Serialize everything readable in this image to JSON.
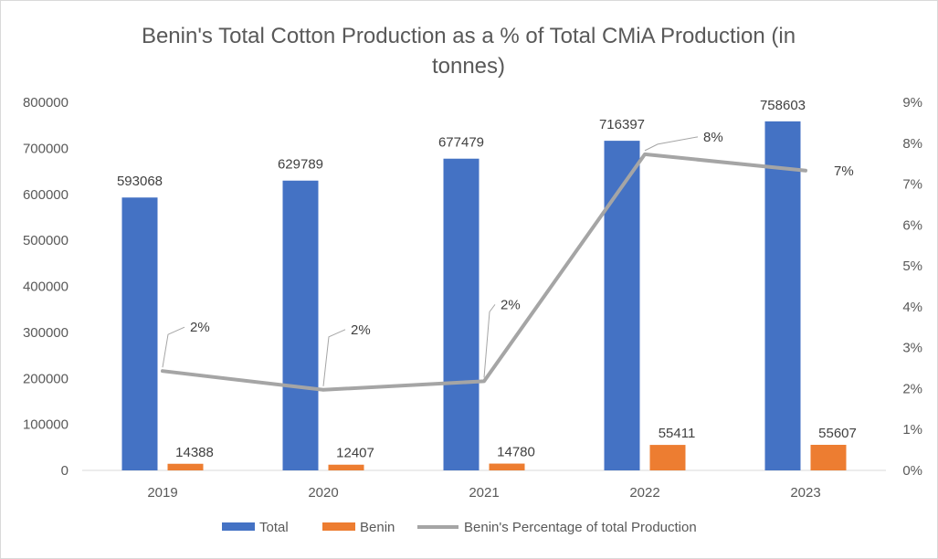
{
  "chart_data": {
    "type": "bar",
    "title": "Benin's Total Cotton Production as a % of Total CMiA Production (in tonnes)",
    "title_lines": [
      "Benin's Total Cotton Production as a % of Total CMiA Production (in",
      "tonnes)"
    ],
    "categories": [
      "2019",
      "2020",
      "2021",
      "2022",
      "2023"
    ],
    "series": [
      {
        "name": "Total",
        "type": "bar",
        "axis": "left",
        "color": "#4472C4",
        "values": [
          593068,
          629789,
          677479,
          716397,
          758603
        ],
        "labels": [
          "593068",
          "629789",
          "677479",
          "716397",
          "758603"
        ]
      },
      {
        "name": "Benin",
        "type": "bar",
        "axis": "left",
        "color": "#ED7D31",
        "values": [
          14388,
          12407,
          14780,
          55411,
          55607
        ],
        "labels": [
          "14388",
          "12407",
          "14780",
          "55411",
          "55607"
        ]
      },
      {
        "name": "Benin's Percentage of total Production",
        "type": "line",
        "axis": "right",
        "color": "#A5A5A5",
        "values": [
          2.43,
          1.97,
          2.18,
          7.73,
          7.33
        ],
        "labels": [
          "2%",
          "2%",
          "2%",
          "8%",
          "7%"
        ]
      }
    ],
    "y_left": {
      "min": 0,
      "max": 800000,
      "step": 100000,
      "ticks": [
        "0",
        "100000",
        "200000",
        "300000",
        "400000",
        "500000",
        "600000",
        "700000",
        "800000"
      ]
    },
    "y_right": {
      "min": 0,
      "max": 9,
      "step": 1,
      "ticks": [
        "0%",
        "1%",
        "2%",
        "3%",
        "4%",
        "5%",
        "6%",
        "7%",
        "8%",
        "9%"
      ]
    },
    "grid": false,
    "legend_position": "bottom"
  }
}
